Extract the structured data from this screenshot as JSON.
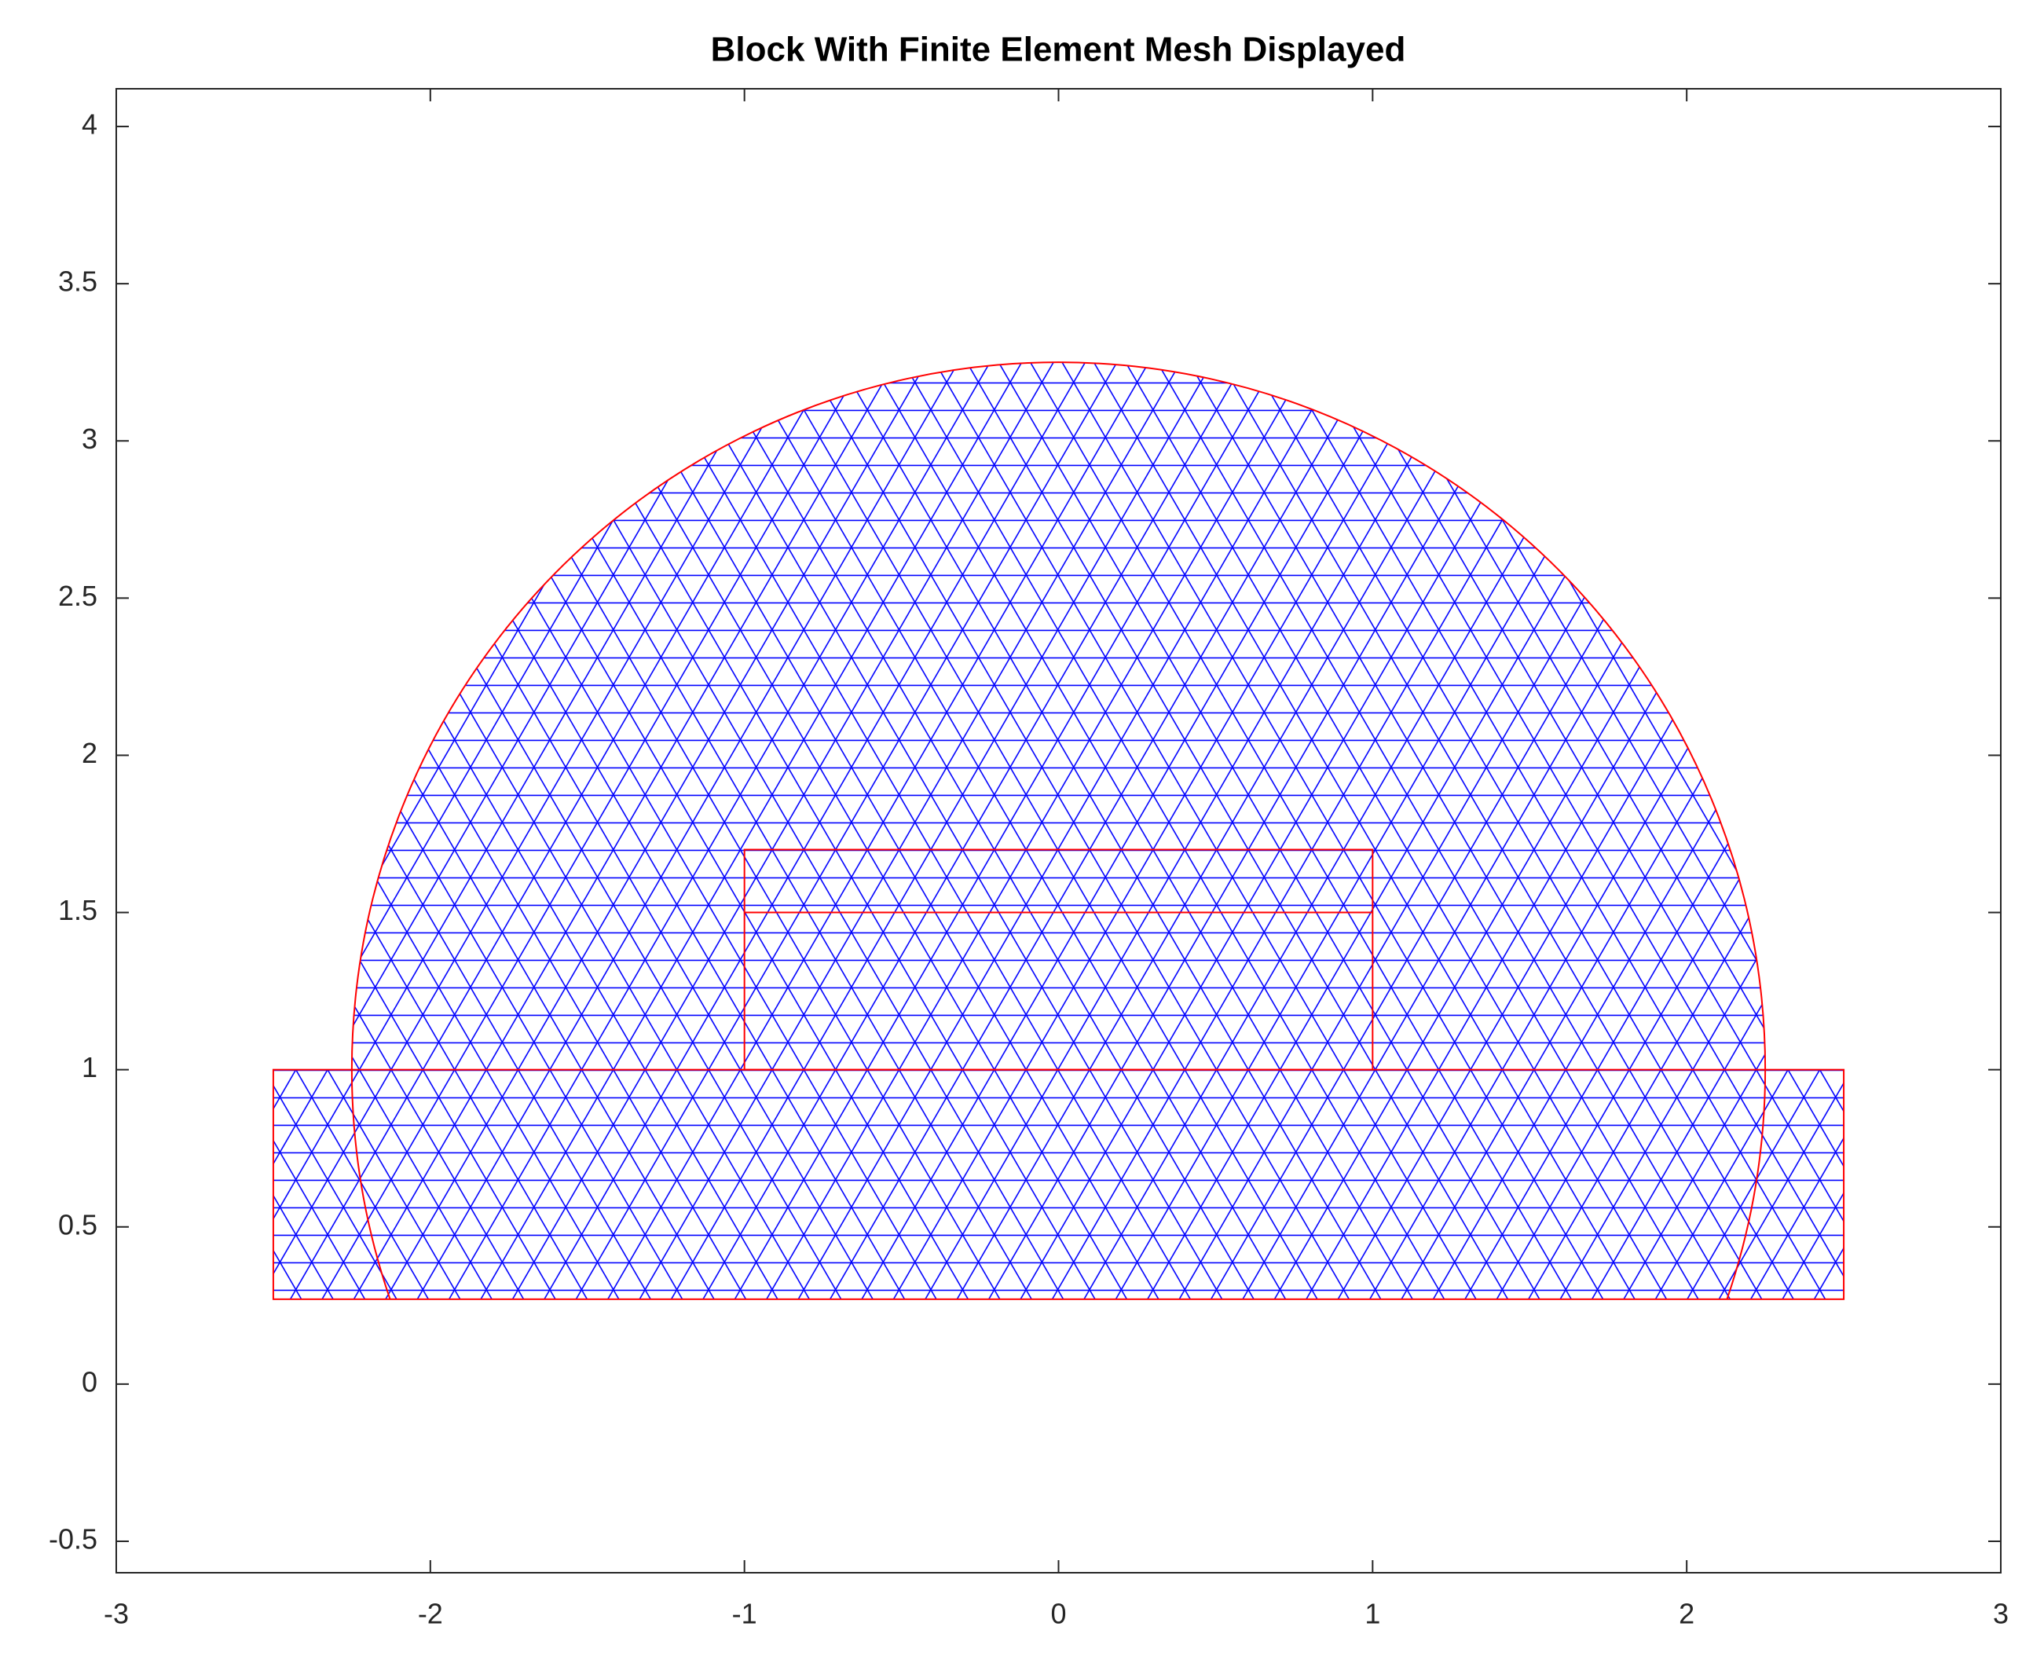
{
  "chart_data": {
    "type": "geometry",
    "title": "Block With Finite Element Mesh Displayed",
    "xlim": [
      -3,
      3
    ],
    "ylim": [
      -0.6,
      4.12
    ],
    "xticks": [
      -3,
      -2,
      -1,
      0,
      1,
      2,
      3
    ],
    "yticks": [
      -0.5,
      0,
      0.5,
      1,
      1.5,
      2,
      2.5,
      3,
      3.5,
      4
    ],
    "edge_color": "#ff0000",
    "mesh_color": "#0000ff",
    "arc": {
      "center": [
        0,
        1
      ],
      "radius": 2.25
    },
    "rectangles": [
      {
        "x": [
          -2.5,
          2.5
        ],
        "y": [
          0.27,
          1
        ]
      },
      {
        "x": [
          -1,
          1
        ],
        "y": [
          1,
          1.7
        ]
      }
    ],
    "lines": [
      {
        "x": [
          -1,
          1
        ],
        "y": [
          1.5,
          1.5
        ]
      }
    ]
  }
}
